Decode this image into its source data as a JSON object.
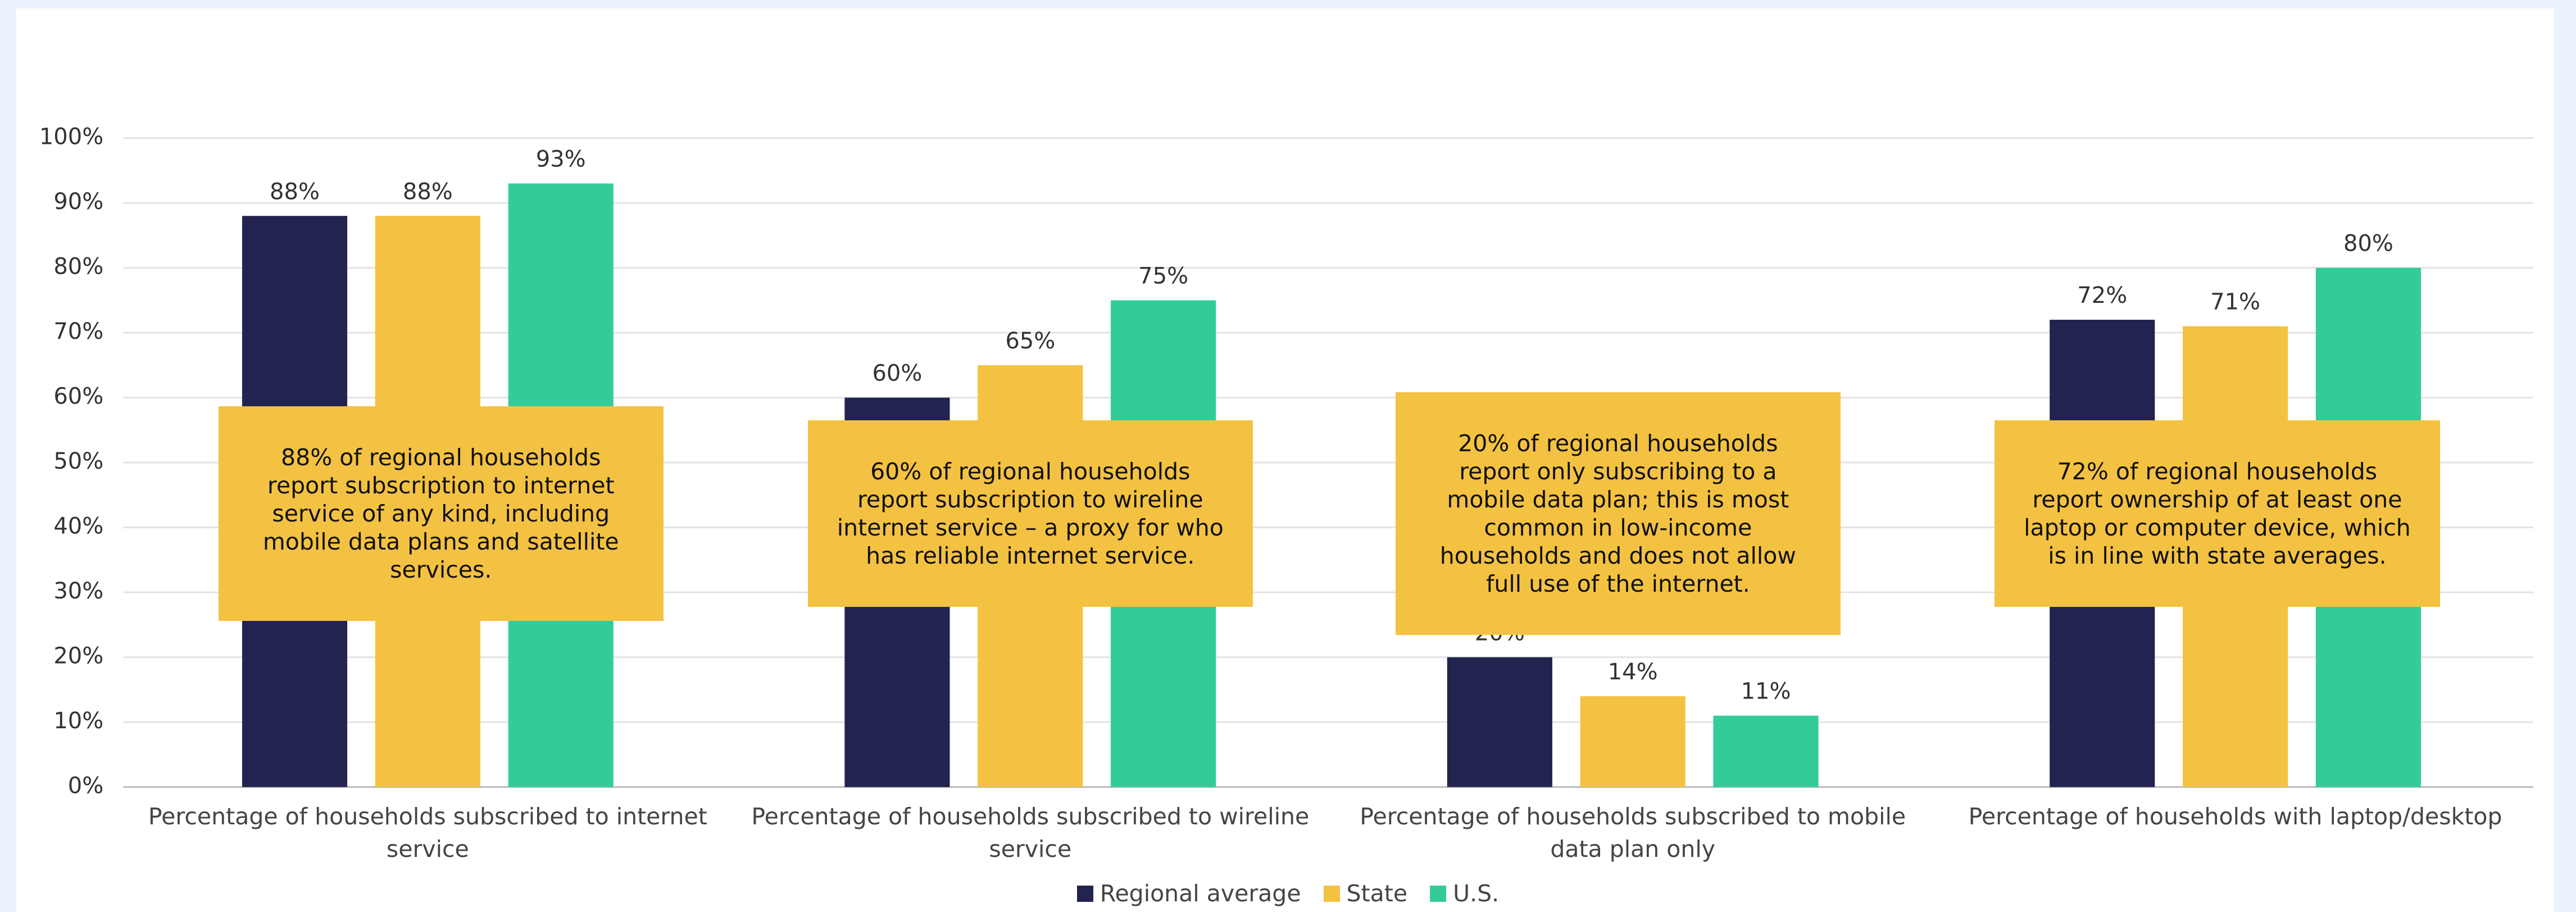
{
  "chart_data": {
    "type": "bar",
    "categories": [
      "Percentage of households subscribed to internet service",
      "Percentage of households subscribed to wireline service",
      "Percentage of households subscribed to mobile data plan only",
      "Percentage of households with laptop/desktop"
    ],
    "series": [
      {
        "name": "Regional average",
        "color": "#232350",
        "values": [
          88,
          60,
          20,
          72
        ],
        "value_labels": [
          "88%",
          "60%",
          "20%",
          "72%"
        ]
      },
      {
        "name": "State",
        "color": "#f4c242",
        "values": [
          88,
          65,
          14,
          71
        ],
        "value_labels": [
          "88%",
          "65%",
          "14%",
          "71%"
        ]
      },
      {
        "name": "U.S.",
        "color": "#33cc99",
        "values": [
          93,
          75,
          11,
          80
        ],
        "value_labels": [
          "93%",
          "75%",
          "11%",
          "80%"
        ]
      }
    ],
    "ylim": [
      0,
      100
    ],
    "yticks": [
      {
        "value": 0,
        "label": "0%"
      },
      {
        "value": 10,
        "label": "10%"
      },
      {
        "value": 20,
        "label": "20%"
      },
      {
        "value": 30,
        "label": "30%"
      },
      {
        "value": 40,
        "label": "40%"
      },
      {
        "value": 50,
        "label": "50%"
      },
      {
        "value": 60,
        "label": "60%"
      },
      {
        "value": 70,
        "label": "70%"
      },
      {
        "value": 80,
        "label": "80%"
      },
      {
        "value": 90,
        "label": "90%"
      },
      {
        "value": 100,
        "label": "100%"
      }
    ],
    "grid": true,
    "annotations": [
      "88% of regional households report subscription to internet service of any kind, including mobile data plans and satellite services.",
      "60% of regional households report subscription to wireline internet service – a proxy for who has reliable internet service.",
      "20% of regional households report only subscribing to a mobile data plan; this is most common in low-income households and does not allow full use of the internet.",
      "72% of regional households report ownership of at least one laptop or computer device, which is in line with state averages."
    ]
  }
}
